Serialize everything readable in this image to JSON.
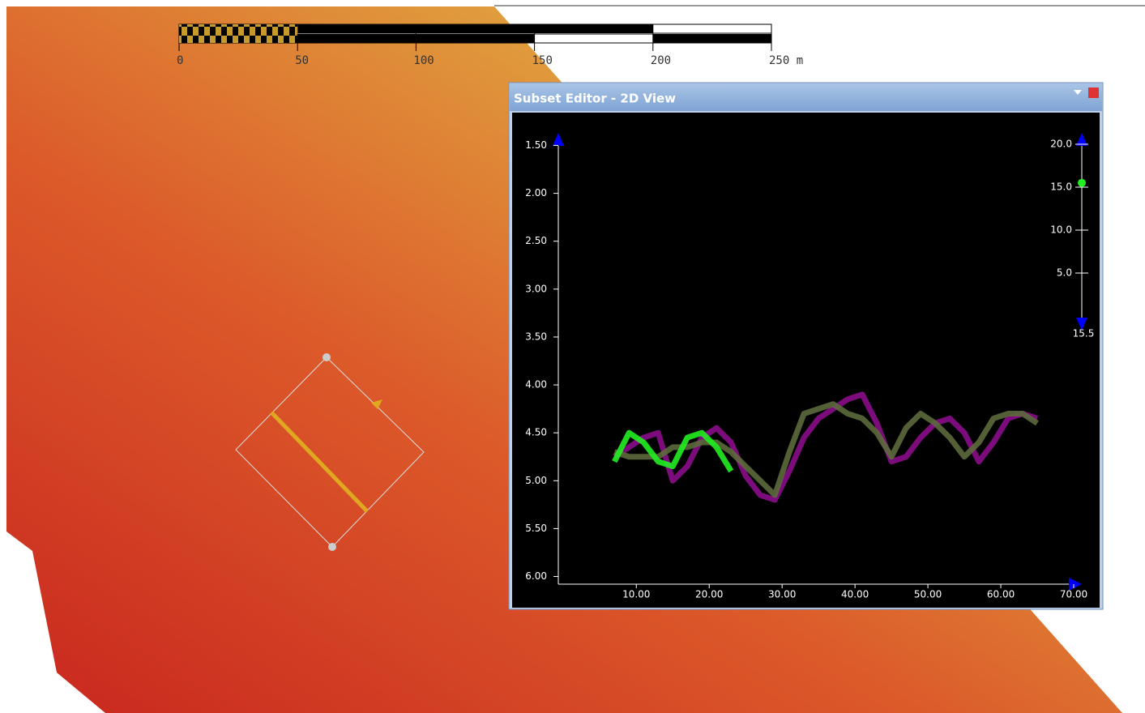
{
  "scale_bar": {
    "ticks": [
      0,
      50,
      100,
      150,
      200,
      {
        "value": 250,
        "label": "250 m"
      }
    ],
    "lim": [
      0,
      250
    ]
  },
  "window": {
    "title": "Subset Editor - 2D View"
  },
  "chart_data": {
    "type": "line",
    "x": [
      7,
      9,
      11,
      13,
      15,
      17,
      19,
      21,
      23,
      25,
      27,
      29,
      31,
      33,
      35,
      37,
      39,
      41,
      43,
      45,
      47,
      49,
      51,
      53,
      55,
      57,
      59,
      61,
      63,
      65
    ],
    "series": [
      {
        "color": "#8a0c8a",
        "values": [
          4.75,
          4.65,
          4.55,
          4.5,
          5.0,
          4.85,
          4.55,
          4.45,
          4.6,
          4.95,
          5.15,
          5.2,
          4.9,
          4.55,
          4.35,
          4.25,
          4.15,
          4.1,
          4.4,
          4.8,
          4.75,
          4.55,
          4.4,
          4.35,
          4.5,
          4.8,
          4.6,
          4.35,
          4.3,
          4.35
        ]
      },
      {
        "color": "#5c6a3c",
        "values": [
          4.7,
          4.75,
          4.75,
          4.75,
          4.65,
          4.65,
          4.6,
          4.6,
          4.7,
          4.85,
          5.0,
          5.15,
          4.7,
          4.3,
          4.25,
          4.2,
          4.3,
          4.35,
          4.5,
          4.75,
          4.45,
          4.3,
          4.4,
          4.55,
          4.75,
          4.6,
          4.35,
          4.3,
          4.3,
          4.4
        ]
      },
      {
        "color": "#22ee22",
        "values": [
          4.8,
          4.5,
          4.6,
          4.8,
          4.85,
          4.55,
          4.5,
          4.65,
          4.9,
          null,
          null,
          null,
          null,
          null,
          null,
          null,
          null,
          null,
          null,
          null,
          null,
          null,
          null,
          null,
          null,
          null,
          null,
          null,
          null,
          null
        ]
      }
    ],
    "xlim": [
      -0.7,
      70
    ],
    "xticks": [
      {
        "value": 10,
        "label": "10.00"
      },
      {
        "value": 20,
        "label": "20.00"
      },
      {
        "value": 30,
        "label": "30.00"
      },
      {
        "value": 40,
        "label": "40.00"
      },
      {
        "value": 50,
        "label": "50.00"
      },
      {
        "value": 60,
        "label": "60.00"
      },
      {
        "value": 70,
        "label": "70.00"
      }
    ],
    "ylim": [
      6.08,
      1.42
    ],
    "yticks": [
      {
        "value": 1.5,
        "label": "1.50"
      },
      {
        "value": 2,
        "label": "2.00"
      },
      {
        "value": 2.5,
        "label": "2.50"
      },
      {
        "value": 3,
        "label": "3.00"
      },
      {
        "value": 3.5,
        "label": "3.50"
      },
      {
        "value": 4,
        "label": "4.00"
      },
      {
        "value": 4.5,
        "label": "4.50"
      },
      {
        "value": 5,
        "label": "5.00"
      },
      {
        "value": 5.5,
        "label": "5.50"
      },
      {
        "value": 6,
        "label": "6.00"
      }
    ]
  },
  "slider": {
    "lim": [
      0,
      20
    ],
    "ticks": [
      {
        "value": 20,
        "label": "20.0"
      },
      {
        "value": 15,
        "label": "15.0"
      },
      {
        "value": 10,
        "label": "10.0"
      },
      {
        "value": 5,
        "label": "5.0"
      }
    ],
    "value": 15.5
  }
}
